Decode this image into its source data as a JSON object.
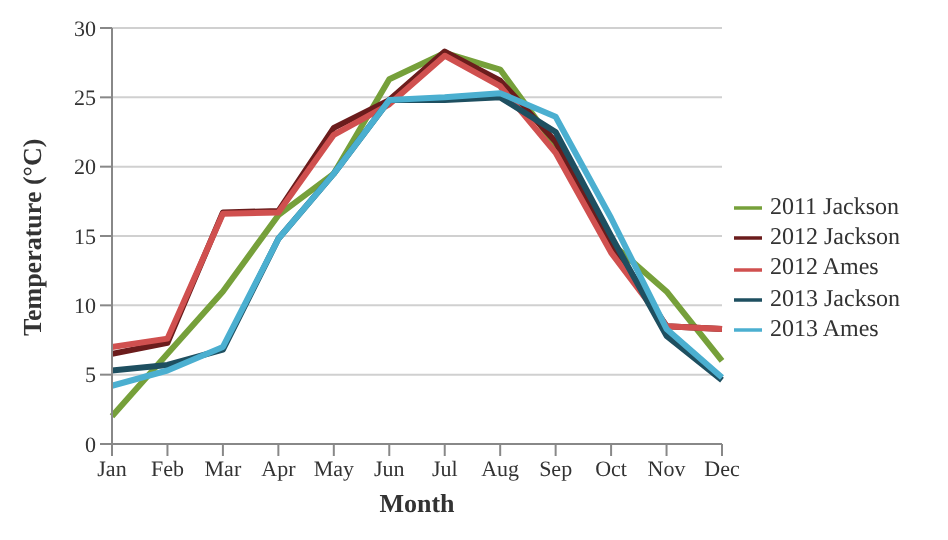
{
  "chart_data": {
    "type": "line",
    "xlabel": "Month",
    "ylabel": "Temperature (°C)",
    "categories": [
      "Jan",
      "Feb",
      "Mar",
      "Apr",
      "May",
      "Jun",
      "Jul",
      "Aug",
      "Sep",
      "Oct",
      "Nov",
      "Dec"
    ],
    "series": [
      {
        "name": "2011 Jackson",
        "color": "#76a03a",
        "values": [
          2,
          6.5,
          11,
          16.5,
          19.5,
          26.3,
          28.2,
          27,
          21.5,
          14.5,
          11,
          6
        ]
      },
      {
        "name": "2012 Jackson",
        "color": "#6b1c1c",
        "values": [
          6.5,
          7.3,
          16.7,
          16.8,
          22.8,
          24.8,
          28.3,
          26.2,
          21.8,
          14.5,
          8.5,
          8.3
        ]
      },
      {
        "name": "2012 Ames",
        "color": "#d0504f",
        "values": [
          7,
          7.6,
          16.6,
          16.7,
          22.3,
          24.5,
          28,
          25.8,
          21,
          13.8,
          8.5,
          8.3
        ]
      },
      {
        "name": "2013 Jackson",
        "color": "#1e4f60",
        "values": [
          5.3,
          5.7,
          6.8,
          14.8,
          19.5,
          24.8,
          24.8,
          25,
          22.5,
          15,
          7.8,
          4.6
        ]
      },
      {
        "name": "2013 Ames",
        "color": "#4bafd0",
        "values": [
          4.2,
          5.3,
          7,
          14.8,
          19.5,
          24.8,
          25,
          25.3,
          23.6,
          16.3,
          8.3,
          4.8
        ]
      }
    ],
    "ylim": [
      0,
      30
    ],
    "yticks": [
      0,
      5,
      10,
      15,
      20,
      25,
      30
    ],
    "grid": "y",
    "legend": "right",
    "marker": "none",
    "line_style": "solid"
  }
}
